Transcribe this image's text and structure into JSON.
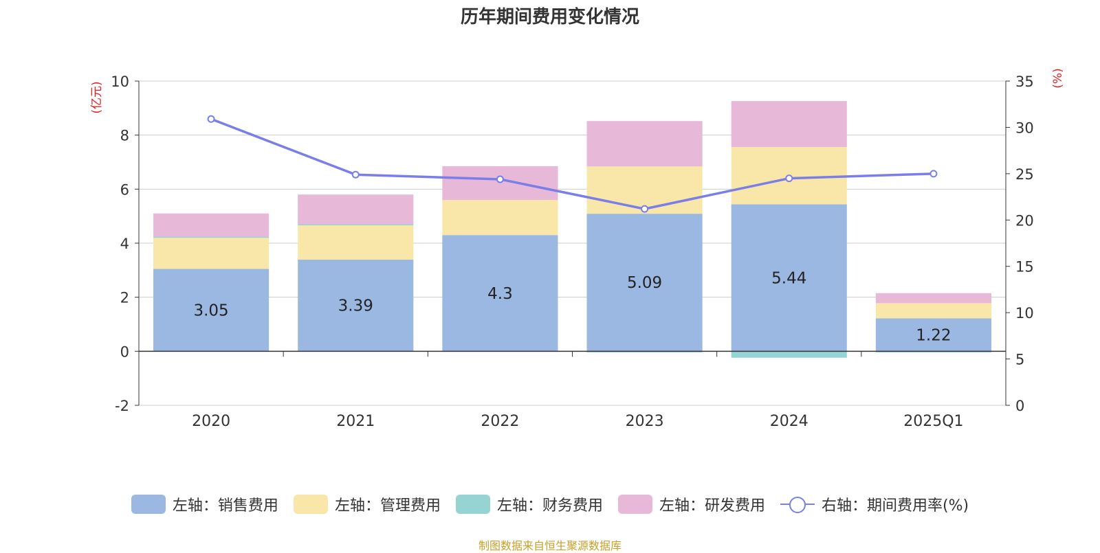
{
  "chart_data": {
    "type": "bar",
    "title": "历年期间费用变化情况",
    "categories": [
      "2020",
      "2021",
      "2022",
      "2023",
      "2024",
      "2025Q1"
    ],
    "left_axis": {
      "unit_label": "(亿元)",
      "ylim": [
        -2,
        10
      ],
      "ticks": [
        "-2",
        "0",
        "2",
        "4",
        "6",
        "8",
        "10"
      ]
    },
    "right_axis": {
      "unit_label": "(%)",
      "ylim": [
        0,
        35
      ],
      "ticks": [
        "0",
        "5",
        "10",
        "15",
        "20",
        "25",
        "30",
        "35"
      ]
    },
    "series": [
      {
        "name": "左轴：销售费用",
        "axis": "left",
        "kind": "bar",
        "color": "#9bb8e2",
        "values": [
          3.05,
          3.39,
          4.3,
          5.09,
          5.44,
          1.22
        ],
        "data_labels": [
          "3.05",
          "3.39",
          "4.3",
          "5.09",
          "5.44",
          "1.22"
        ]
      },
      {
        "name": "左轴：管理费用",
        "axis": "left",
        "kind": "bar",
        "color": "#f8e7a8",
        "values": [
          1.15,
          1.27,
          1.3,
          1.75,
          2.12,
          0.56
        ]
      },
      {
        "name": "左轴：财务费用",
        "axis": "left",
        "kind": "bar",
        "color": "#96d3d3",
        "values": [
          0.04,
          0.04,
          -0.02,
          -0.04,
          -0.24,
          -0.04
        ]
      },
      {
        "name": "左轴：研发费用",
        "axis": "left",
        "kind": "bar",
        "color": "#e8b8d8",
        "values": [
          0.86,
          1.1,
          1.25,
          1.68,
          1.7,
          0.37
        ]
      },
      {
        "name": "右轴：期间费用率(%)",
        "axis": "right",
        "kind": "line",
        "color": "#7a7ee8",
        "values": [
          30.9,
          24.9,
          24.4,
          21.2,
          24.5,
          25.0
        ]
      }
    ],
    "grid": true,
    "legend_position": "bottom"
  },
  "source_note": "制图数据来自恒生聚源数据库"
}
